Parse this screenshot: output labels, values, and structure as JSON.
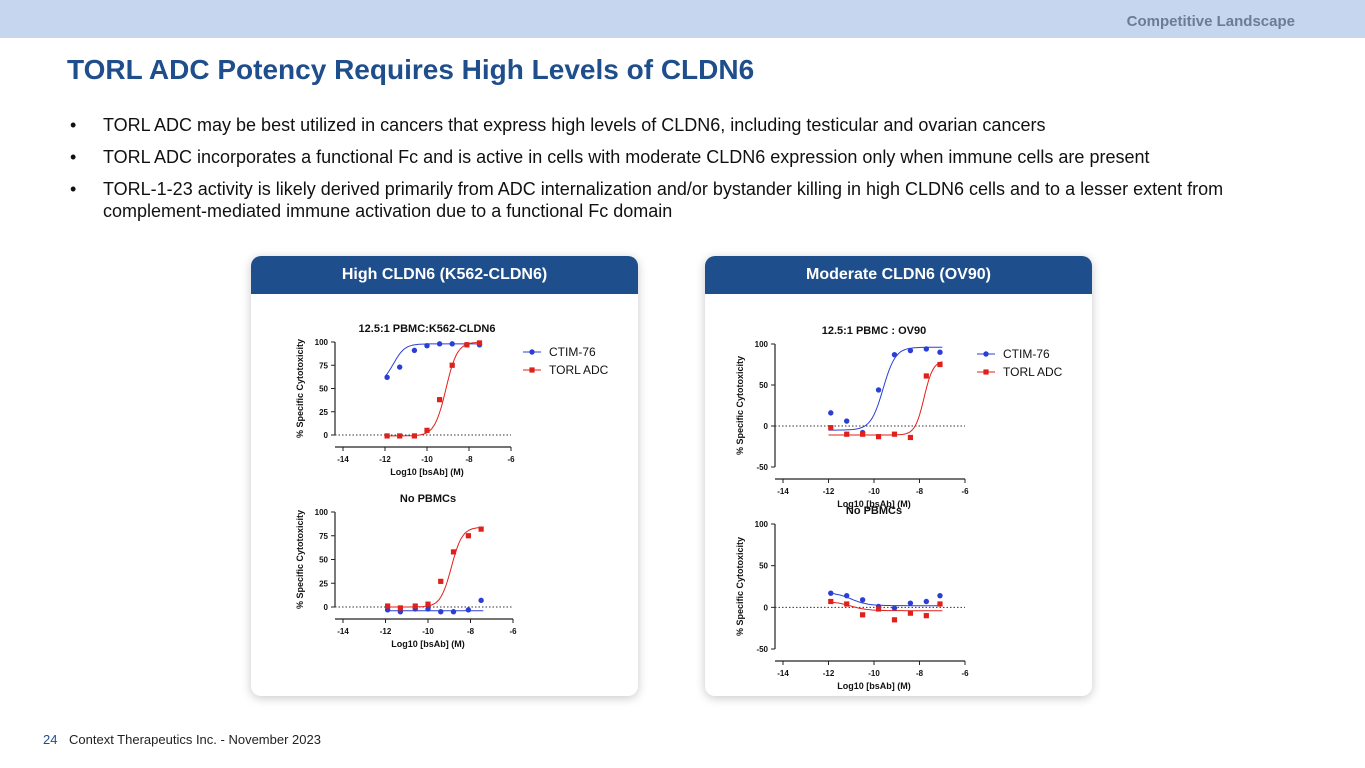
{
  "header": {
    "section": "Competitive Landscape"
  },
  "title": "TORL ADC Potency Requires High Levels of CLDN6",
  "bullets": [
    "TORL ADC may be best utilized in cancers that express high levels of CLDN6, including testicular and ovarian cancers",
    "TORL ADC incorporates a functional Fc and is active in cells with moderate CLDN6 expression only when immune cells are present",
    "TORL-1-23 activity is likely derived primarily from ADC internalization and/or bystander killing in high CLDN6 cells and to a lesser extent from complement-mediated immune activation due to a functional Fc domain"
  ],
  "panels": [
    {
      "header": "High CLDN6 (K562-CLDN6)"
    },
    {
      "header": "Moderate CLDN6 (OV90)"
    }
  ],
  "footer": {
    "page": "24",
    "text": "Context Therapeutics Inc. - November 2023"
  },
  "colors": {
    "ctim": "#2b3fd6",
    "torl": "#e0201b",
    "brand": "#1f4e8c"
  },
  "chart_data": [
    {
      "type": "scatter",
      "title": "12.5:1 PBMC:K562-CLDN6",
      "xlabel": "Log10 [bsAb] (M)",
      "ylabel": "% Specific Cytotoxicity",
      "xlim": [
        -14,
        -6
      ],
      "ylim": [
        0,
        100
      ],
      "xticks": [
        -14,
        -12,
        -10,
        -8,
        -6
      ],
      "yticks": [
        0,
        25,
        50,
        75,
        100
      ],
      "legend": "right",
      "series": [
        {
          "name": "CTIM-76",
          "x": [
            -11.9,
            -11.3,
            -10.6,
            -10.0,
            -9.4,
            -8.8,
            -8.1,
            -7.5
          ],
          "y": [
            62,
            73,
            91,
            96,
            98,
            98,
            97,
            97
          ]
        },
        {
          "name": "TORL ADC",
          "x": [
            -11.9,
            -11.3,
            -10.6,
            -10.0,
            -9.4,
            -8.8,
            -8.1,
            -7.5
          ],
          "y": [
            -1,
            -1,
            -1,
            5,
            38,
            75,
            97,
            99
          ]
        }
      ]
    },
    {
      "type": "scatter",
      "title": "No PBMCs",
      "xlabel": "Log10 [bsAb] (M)",
      "ylabel": "% Specific Cytotoxicity",
      "xlim": [
        -14,
        -6
      ],
      "ylim": [
        0,
        100
      ],
      "xticks": [
        -14,
        -12,
        -10,
        -8,
        -6
      ],
      "yticks": [
        0,
        25,
        50,
        75,
        100
      ],
      "series": [
        {
          "name": "CTIM-76",
          "x": [
            -11.9,
            -11.3,
            -10.6,
            -10.0,
            -9.4,
            -8.8,
            -8.1,
            -7.5
          ],
          "y": [
            -3,
            -5,
            -2,
            -2,
            -5,
            -5,
            -3,
            7
          ]
        },
        {
          "name": "TORL ADC",
          "x": [
            -11.9,
            -11.3,
            -10.6,
            -10.0,
            -9.4,
            -8.8,
            -8.1,
            -7.5
          ],
          "y": [
            1,
            -1,
            1,
            3,
            27,
            58,
            75,
            82
          ]
        }
      ]
    },
    {
      "type": "scatter",
      "title": "12.5:1 PBMC : OV90",
      "xlabel": "Log10 [bsAb] (M)",
      "ylabel": "% Specific Cytotoxicity",
      "xlim": [
        -14,
        -6
      ],
      "ylim": [
        -50,
        100
      ],
      "xticks": [
        -14,
        -12,
        -10,
        -8,
        -6
      ],
      "yticks": [
        -50,
        0,
        50,
        100
      ],
      "legend": "right",
      "series": [
        {
          "name": "CTIM-76",
          "x": [
            -11.9,
            -11.2,
            -10.5,
            -9.8,
            -9.1,
            -8.4,
            -7.7,
            -7.1
          ],
          "y": [
            16,
            6,
            -8,
            44,
            87,
            92,
            94,
            90
          ]
        },
        {
          "name": "TORL ADC",
          "x": [
            -11.9,
            -11.2,
            -10.5,
            -9.8,
            -9.1,
            -8.4,
            -7.7,
            -7.1
          ],
          "y": [
            -2,
            -10,
            -10,
            -13,
            -10,
            -14,
            61,
            75
          ]
        }
      ]
    },
    {
      "type": "scatter",
      "title": "No PBMCs",
      "xlabel": "Log10 [bsAb] (M)",
      "ylabel": "% Specific Cytotoxicity",
      "xlim": [
        -14,
        -6
      ],
      "ylim": [
        -50,
        100
      ],
      "xticks": [
        -14,
        -12,
        -10,
        -8,
        -6
      ],
      "yticks": [
        -50,
        0,
        50,
        100
      ],
      "series": [
        {
          "name": "CTIM-76",
          "x": [
            -11.9,
            -11.2,
            -10.5,
            -9.8,
            -9.1,
            -8.4,
            -7.7,
            -7.1
          ],
          "y": [
            17,
            14,
            9,
            1,
            -1,
            5,
            7,
            14
          ]
        },
        {
          "name": "TORL ADC",
          "x": [
            -11.9,
            -11.2,
            -10.5,
            -9.8,
            -9.1,
            -8.4,
            -7.7,
            -7.1
          ],
          "y": [
            7,
            4,
            -9,
            -2,
            -15,
            -7,
            -10,
            4
          ]
        }
      ]
    }
  ]
}
